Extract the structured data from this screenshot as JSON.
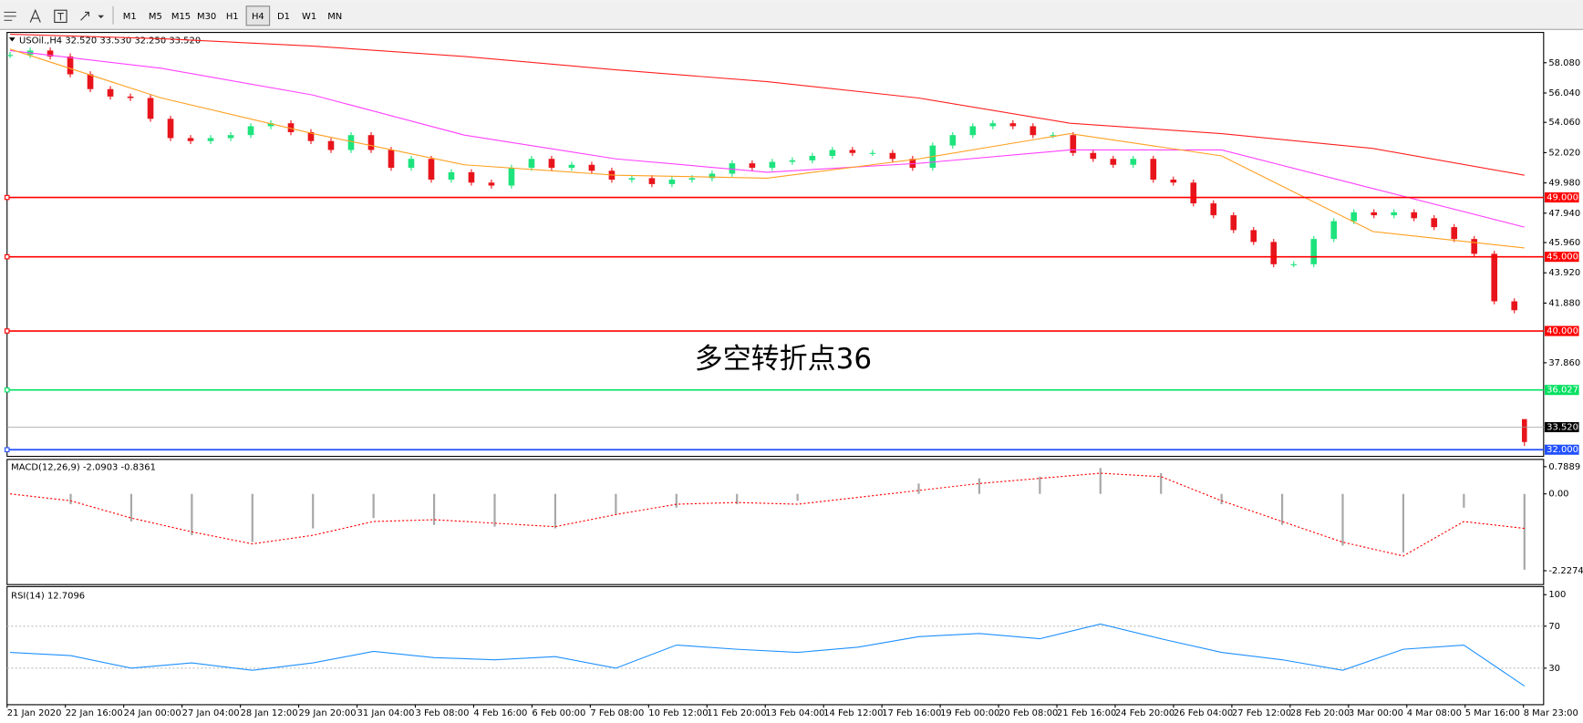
{
  "toolbar": {
    "timeframes": [
      "M1",
      "M5",
      "M15",
      "M30",
      "H1",
      "H4",
      "D1",
      "W1",
      "MN"
    ],
    "active": "H4"
  },
  "price_chart": {
    "symbol": "USOil.,H4",
    "ohlc": [
      {
        "value": 32.52,
        "label": "32.520"
      },
      {
        "value": 33.53,
        "label": "33.530"
      },
      {
        "value": 32.25,
        "label": "32.250"
      },
      {
        "value": 33.52,
        "label": "33.520"
      }
    ],
    "ylim": [
      31.55,
      60.12
    ],
    "yticks": [
      {
        "value": 58.08,
        "label": "58.080"
      },
      {
        "value": 56.04,
        "label": "56.040"
      },
      {
        "value": 54.06,
        "label": "54.060"
      },
      {
        "value": 52.02,
        "label": "52.020"
      },
      {
        "value": 49.98,
        "label": "49.980"
      },
      {
        "value": 47.94,
        "label": "47.940"
      },
      {
        "value": 45.96,
        "label": "45.960"
      },
      {
        "value": 43.92,
        "label": "43.920"
      },
      {
        "value": 41.88,
        "label": "41.880"
      },
      {
        "value": 37.86,
        "label": "37.860"
      }
    ],
    "closes": [
      58.6,
      58.9,
      58.5,
      57.3,
      56.3,
      55.8,
      55.7,
      54.3,
      53.0,
      52.8,
      53.0,
      53.2,
      53.8,
      54.0,
      53.4,
      52.8,
      52.2,
      53.2,
      52.2,
      51.0,
      51.6,
      50.2,
      50.7,
      50.0,
      49.8,
      51.0,
      51.6,
      51.0,
      51.2,
      50.8,
      50.2,
      50.3,
      49.9,
      50.2,
      50.3,
      50.6,
      51.3,
      51.0,
      51.4,
      51.5,
      51.8,
      52.2,
      52.0,
      52.0,
      51.6,
      51.0,
      52.5,
      53.2,
      53.8,
      54.0,
      53.8,
      53.2,
      53.2,
      52.0,
      51.6,
      51.2,
      51.6,
      50.2,
      50.0,
      48.6,
      47.8,
      46.8,
      46.0,
      44.5,
      44.5,
      46.2,
      47.4,
      48.0,
      47.8,
      48.0,
      47.6,
      47.0,
      46.2,
      45.2,
      42.0,
      41.4
    ],
    "up_color": "#1ee37d",
    "down_color": "#e8141b",
    "moving_averages": [
      {
        "color": "#ff2020",
        "values": [
          60.0,
          59.7,
          59.2,
          58.5,
          57.6,
          56.8,
          55.7,
          54.0,
          53.3,
          52.3,
          50.5
        ]
      },
      {
        "color": "#ff40ff",
        "values": [
          58.9,
          57.7,
          55.9,
          53.2,
          51.6,
          50.7,
          51.3,
          52.2,
          52.2,
          49.6,
          47.0
        ]
      },
      {
        "color": "#ffa020",
        "values": [
          59.0,
          55.7,
          53.3,
          51.2,
          50.5,
          50.3,
          51.6,
          53.3,
          51.8,
          46.7,
          45.6
        ]
      }
    ],
    "levels": [
      {
        "value": 49,
        "label": "49.000",
        "color": "#ff0000"
      },
      {
        "value": 45,
        "label": "45.000",
        "color": "#ff0000"
      },
      {
        "value": 40,
        "label": "40.000",
        "color": "#ff0000"
      },
      {
        "value": 36.027,
        "label": "36.027",
        "color": "#00e060"
      },
      {
        "value": 32,
        "label": "32.000",
        "color": "#2050ff"
      }
    ],
    "current_price": {
      "value": 33.52,
      "label": "33.520"
    },
    "annotation": "多空转折点36"
  },
  "macd": {
    "name": "MACD(12,26,9)",
    "main": -2.0903,
    "signal": -0.8361,
    "ylim": [
      -2.6,
      0.97
    ],
    "yticks": [
      0.7889,
      {
        "value": 0,
        "label": "0.00"
      },
      -2.2274
    ],
    "histogram": [
      0.0,
      -0.3,
      -0.8,
      -1.2,
      -1.4,
      -1.0,
      -0.7,
      -0.9,
      -0.95,
      -1.0,
      -0.6,
      -0.4,
      -0.3,
      -0.2,
      0.0,
      0.3,
      0.45,
      0.5,
      0.75,
      0.6,
      -0.3,
      -0.9,
      -1.5,
      -1.7,
      -0.4,
      -2.2
    ],
    "signal_line": [
      0.0,
      -0.2,
      -0.7,
      -1.1,
      -1.45,
      -1.2,
      -0.8,
      -0.75,
      -0.85,
      -0.95,
      -0.6,
      -0.3,
      -0.25,
      -0.3,
      -0.1,
      0.1,
      0.3,
      0.45,
      0.6,
      0.5,
      -0.2,
      -0.8,
      -1.4,
      -1.8,
      -0.8,
      -1.0
    ],
    "signal_color": "#ff0000"
  },
  "rsi": {
    "name": "RSI(14)",
    "value": 12.7096,
    "ylim": [
      0,
      100
    ],
    "yticks": [
      100,
      70,
      30
    ],
    "values": [
      45,
      42,
      30,
      35,
      28,
      35,
      46,
      40,
      38,
      41,
      30,
      52,
      48,
      45,
      50,
      60,
      63,
      58,
      72,
      58,
      45,
      38,
      28,
      48,
      52,
      13
    ],
    "color": "#1e90ff"
  },
  "time_axis": [
    "21 Jan 2020",
    "22 Jan 16:00",
    "24 Jan 00:00",
    "27 Jan 04:00",
    "28 Jan 12:00",
    "29 Jan 20:00",
    "31 Jan 04:00",
    "3 Feb 08:00",
    "4 Feb 16:00",
    "6 Feb 00:00",
    "7 Feb 08:00",
    "10 Feb 12:00",
    "11 Feb 20:00",
    "13 Feb 04:00",
    "14 Feb 12:00",
    "17 Feb 16:00",
    "19 Feb 00:00",
    "20 Feb 08:00",
    "21 Feb 16:00",
    "24 Feb 20:00",
    "26 Feb 04:00",
    "27 Feb 12:00",
    "28 Feb 20:00",
    "3 Mar 00:00",
    "4 Mar 08:00",
    "5 Mar 16:00",
    "8 Mar 23:00"
  ]
}
